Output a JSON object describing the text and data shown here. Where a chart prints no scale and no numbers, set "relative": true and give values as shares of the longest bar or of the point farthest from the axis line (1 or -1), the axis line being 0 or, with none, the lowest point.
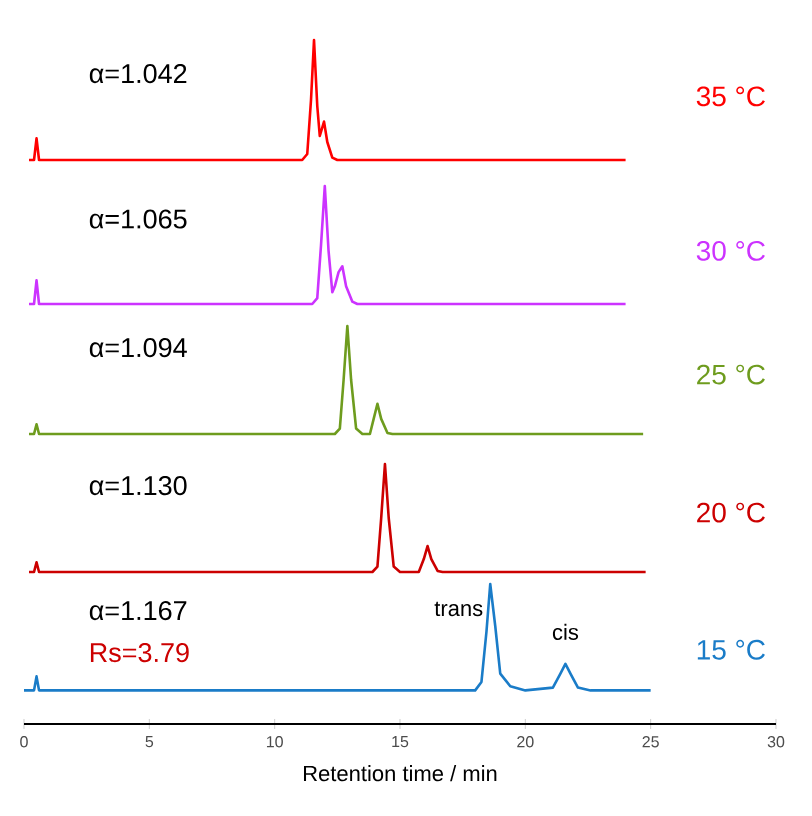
{
  "chart_data": [
    {
      "type": "line",
      "relative": true,
      "xlim": [
        0,
        30
      ],
      "tick_labels": false,
      "annotations": [
        "α=1.042"
      ],
      "series": [
        {
          "name": "35 °C",
          "color": "#ff0000",
          "x": [
            0.2,
            0.4,
            0.5,
            0.6,
            11.1,
            11.3,
            11.45,
            11.57,
            11.7,
            11.8,
            11.97,
            12.1,
            12.3,
            12.5,
            24.0
          ],
          "values": [
            0,
            0,
            0.18,
            0,
            0,
            0.05,
            0.5,
            1,
            0.45,
            0.2,
            0.32,
            0.15,
            0.02,
            0,
            0
          ]
        }
      ]
    },
    {
      "type": "line",
      "relative": true,
      "xlim": [
        0,
        30
      ],
      "tick_labels": false,
      "annotations": [
        "α=1.065"
      ],
      "series": [
        {
          "name": "30 °C",
          "color": "#cc33ff",
          "x": [
            0.2,
            0.4,
            0.5,
            0.6,
            11.5,
            11.7,
            11.85,
            12.0,
            12.15,
            12.3,
            12.4,
            12.55,
            12.7,
            12.85,
            13.1,
            13.3,
            24.0
          ],
          "values": [
            0,
            0,
            0.2,
            0,
            0,
            0.05,
            0.5,
            1,
            0.45,
            0.1,
            0.15,
            0.27,
            0.32,
            0.15,
            0.02,
            0,
            0
          ]
        }
      ]
    },
    {
      "type": "line",
      "relative": true,
      "xlim": [
        0,
        30
      ],
      "tick_labels": false,
      "annotations": [
        "α=1.094"
      ],
      "series": [
        {
          "name": "25 °C",
          "color": "#6e9c1e",
          "x": [
            0.2,
            0.4,
            0.5,
            0.6,
            12.4,
            12.6,
            12.75,
            12.9,
            13.05,
            13.25,
            13.5,
            13.8,
            13.95,
            14.1,
            14.25,
            14.5,
            14.7,
            24.7
          ],
          "values": [
            0,
            0,
            0.09,
            0,
            0,
            0.05,
            0.5,
            1,
            0.5,
            0.05,
            0,
            0,
            0.14,
            0.28,
            0.14,
            0.01,
            0,
            0
          ]
        }
      ]
    },
    {
      "type": "line",
      "relative": true,
      "xlim": [
        0,
        30
      ],
      "tick_labels": false,
      "annotations": [
        "α=1.130"
      ],
      "series": [
        {
          "name": "20 °C",
          "color": "#cc0000",
          "x": [
            0.2,
            0.4,
            0.5,
            0.6,
            13.9,
            14.1,
            14.25,
            14.4,
            14.55,
            14.75,
            15.0,
            15.75,
            15.95,
            16.1,
            16.25,
            16.5,
            16.7,
            24.8
          ],
          "values": [
            0,
            0,
            0.09,
            0,
            0,
            0.05,
            0.5,
            1,
            0.5,
            0.05,
            0,
            0,
            0.12,
            0.24,
            0.12,
            0.01,
            0,
            0
          ]
        }
      ]
    },
    {
      "type": "line",
      "relative": true,
      "xlim": [
        0,
        30
      ],
      "xticks": [
        0,
        5,
        10,
        15,
        20,
        25,
        30
      ],
      "tick_labels": "x",
      "xlabel": "Retention time / min",
      "annotations": [
        "α=1.167",
        "Rs=3.79",
        {
          "text": "trans",
          "x": 18.6,
          "y": 1
        },
        {
          "text": "cis",
          "x": 21.6,
          "y": 0.43
        }
      ],
      "series": [
        {
          "name": "15 °C",
          "color": "#1a7cc8",
          "x": [
            0,
            0.4,
            0.5,
            0.6,
            18.0,
            18.25,
            18.45,
            18.6,
            18.8,
            19.0,
            19.4,
            20.0,
            21.1,
            21.4,
            21.6,
            21.8,
            22.1,
            22.6,
            25.0
          ],
          "values": [
            0.24,
            0.24,
            0.34,
            0.24,
            0.24,
            0.3,
            0.66,
            1,
            0.7,
            0.36,
            0.27,
            0.24,
            0.26,
            0.36,
            0.43,
            0.36,
            0.26,
            0.24,
            0.24
          ]
        }
      ]
    }
  ]
}
